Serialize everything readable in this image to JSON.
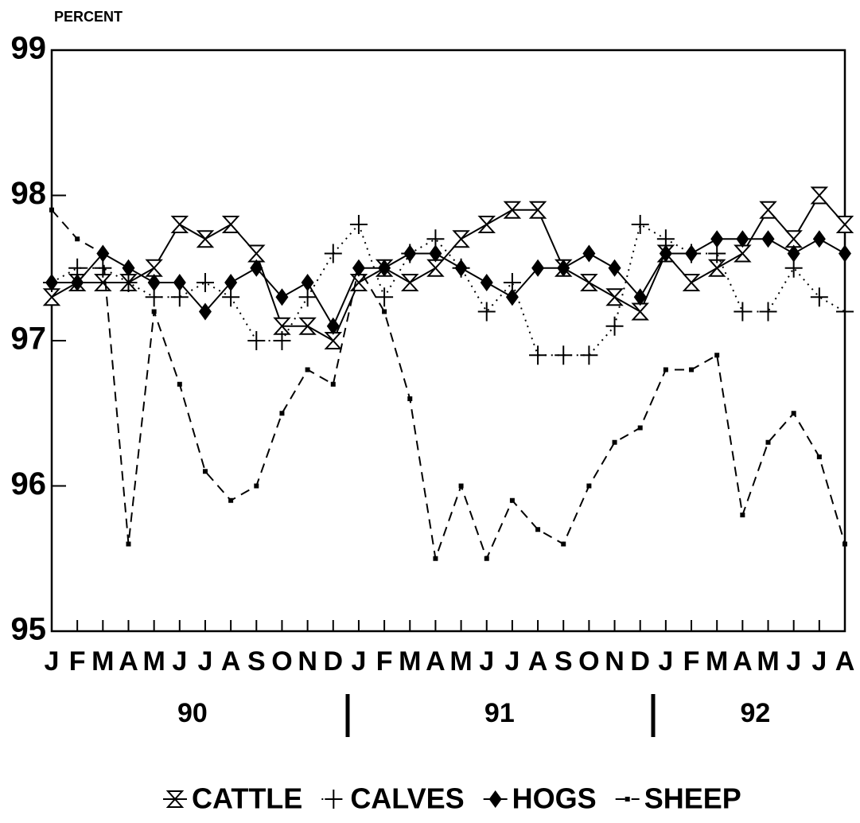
{
  "chart_data": {
    "type": "line",
    "y_axis_label": "PERCENT",
    "categories": [
      "J",
      "F",
      "M",
      "A",
      "M",
      "J",
      "J",
      "A",
      "S",
      "O",
      "N",
      "D",
      "J",
      "F",
      "M",
      "A",
      "M",
      "J",
      "J",
      "A",
      "S",
      "O",
      "N",
      "D",
      "J",
      "F",
      "M",
      "A",
      "M",
      "J",
      "J",
      "A"
    ],
    "year_labels": [
      "90",
      "91",
      "92"
    ],
    "ylim": [
      95,
      99
    ],
    "yticks": [
      95,
      96,
      97,
      98,
      99
    ],
    "series": [
      {
        "name": "CATTLE",
        "color": "#000000",
        "marker": "hourglass",
        "line_style": "solid",
        "values": [
          97.3,
          97.4,
          97.4,
          97.4,
          97.5,
          97.8,
          97.7,
          97.8,
          97.6,
          97.1,
          97.1,
          97.0,
          97.4,
          97.5,
          97.4,
          97.5,
          97.7,
          97.8,
          97.9,
          97.9,
          97.5,
          97.4,
          97.3,
          97.2,
          97.6,
          97.4,
          97.5,
          97.6,
          97.9,
          97.7,
          98.0,
          97.8
        ]
      },
      {
        "name": "CALVES",
        "color": "#000000",
        "marker": "plus",
        "line_style": "dotted",
        "values": [
          97.4,
          97.5,
          97.5,
          97.4,
          97.3,
          97.3,
          97.4,
          97.3,
          97.0,
          97.0,
          97.3,
          97.6,
          97.8,
          97.3,
          97.6,
          97.7,
          97.5,
          97.2,
          97.4,
          96.9,
          96.9,
          96.9,
          97.1,
          97.8,
          97.7,
          97.6,
          97.6,
          97.2,
          97.2,
          97.5,
          97.3,
          97.2
        ]
      },
      {
        "name": "HOGS",
        "color": "#000000",
        "marker": "diamond",
        "line_style": "solid",
        "values": [
          97.4,
          97.4,
          97.6,
          97.5,
          97.4,
          97.4,
          97.2,
          97.4,
          97.5,
          97.3,
          97.4,
          97.1,
          97.5,
          97.5,
          97.6,
          97.6,
          97.5,
          97.4,
          97.3,
          97.5,
          97.5,
          97.6,
          97.5,
          97.3,
          97.6,
          97.6,
          97.7,
          97.7,
          97.7,
          97.6,
          97.7,
          97.6
        ]
      },
      {
        "name": "SHEEP",
        "color": "#000000",
        "marker": "square",
        "line_style": "dashed",
        "values": [
          97.9,
          97.7,
          97.6,
          95.6,
          97.2,
          96.7,
          96.1,
          95.9,
          96.0,
          96.5,
          96.8,
          96.7,
          97.5,
          97.2,
          96.6,
          95.5,
          96.0,
          95.5,
          95.9,
          95.7,
          95.6,
          96.0,
          96.3,
          96.4,
          96.8,
          96.8,
          96.9,
          95.8,
          96.3,
          96.5,
          96.2,
          95.6
        ]
      }
    ]
  }
}
